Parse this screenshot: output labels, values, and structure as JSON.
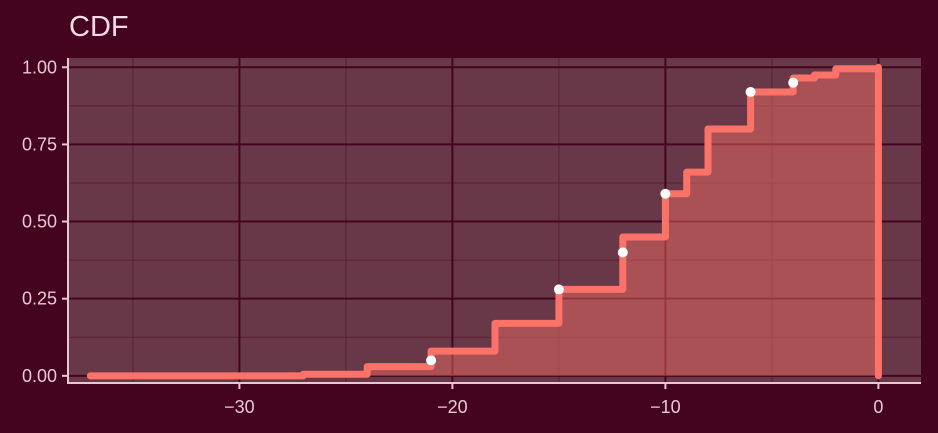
{
  "chart_data": {
    "type": "line",
    "subtype": "ecdf-step",
    "title": "CDF",
    "xlabel": "",
    "ylabel": "",
    "xlim": [
      -38,
      2
    ],
    "ylim": [
      -0.02,
      1.03
    ],
    "x_ticks": [
      -30,
      -20,
      -10,
      0
    ],
    "x_tick_labels": [
      "−30",
      "−20",
      "−10",
      "0"
    ],
    "y_ticks": [
      0,
      0.25,
      0.5,
      0.75,
      1
    ],
    "y_tick_labels": [
      "0.00",
      "0.25",
      "0.50",
      "0.75",
      "1.00"
    ],
    "grid": true,
    "legend": "none",
    "series": [
      {
        "steps": [
          [
            -37,
            0.0
          ],
          [
            -27,
            0.005
          ],
          [
            -24,
            0.03
          ],
          [
            -21,
            0.08
          ],
          [
            -18,
            0.17
          ],
          [
            -15,
            0.28
          ],
          [
            -12,
            0.45
          ],
          [
            -10,
            0.59
          ],
          [
            -9,
            0.66
          ],
          [
            -8,
            0.8
          ],
          [
            -6,
            0.92
          ],
          [
            -4,
            0.965
          ],
          [
            -3,
            0.975
          ],
          [
            -2,
            0.995
          ],
          [
            0,
            1.0
          ]
        ],
        "end_x": 0
      }
    ],
    "points": [
      {
        "x": -21,
        "y": 0.05
      },
      {
        "x": -15,
        "y": 0.28
      },
      {
        "x": -12,
        "y": 0.4
      },
      {
        "x": -10,
        "y": 0.59
      },
      {
        "x": -6,
        "y": 0.92
      },
      {
        "x": -4,
        "y": 0.95
      }
    ],
    "colors": {
      "background": "#45041e",
      "panel": "#693848",
      "grid_major": "#45041e",
      "grid_minor": "#5a2036",
      "axis": "#e8c7d3",
      "line": "#fa7268",
      "fill": "#fa7268",
      "point": "#ffffff"
    }
  }
}
